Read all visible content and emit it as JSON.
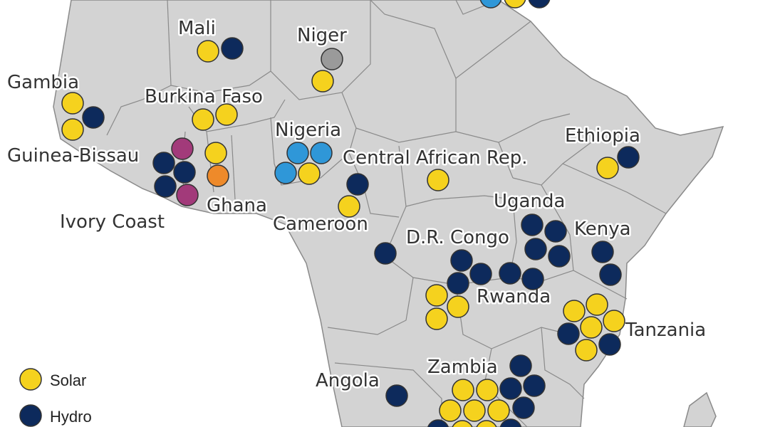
{
  "colors": {
    "land": "#d3d3d3",
    "border": "#8a8a8a",
    "solar": "#f5d21e",
    "hydro": "#0d2a5c",
    "light_blue": "#2f97d8",
    "gray_marker": "#9a9a9a",
    "orange": "#ee8a2a",
    "magenta": "#a23a7a"
  },
  "labels": {
    "mali": "Mali",
    "niger": "Niger",
    "gambia": "Gambia",
    "burkina_faso": "Burkina Faso",
    "nigeria": "Nigeria",
    "ethiopia": "Ethiopia",
    "guinea_bissau": "Guinea-Bissau",
    "central_african_rep": "Central African Rep.",
    "ghana": "Ghana",
    "ivory_coast": "Ivory Coast",
    "cameroon": "Cameroon",
    "uganda": "Uganda",
    "kenya": "Kenya",
    "dr_congo": "D.R. Congo",
    "rwanda": "Rwanda",
    "tanzania": "Tanzania",
    "zambia": "Zambia",
    "angola": "Angola"
  },
  "legend": {
    "solar": "Solar",
    "hydro": "Hydro"
  }
}
